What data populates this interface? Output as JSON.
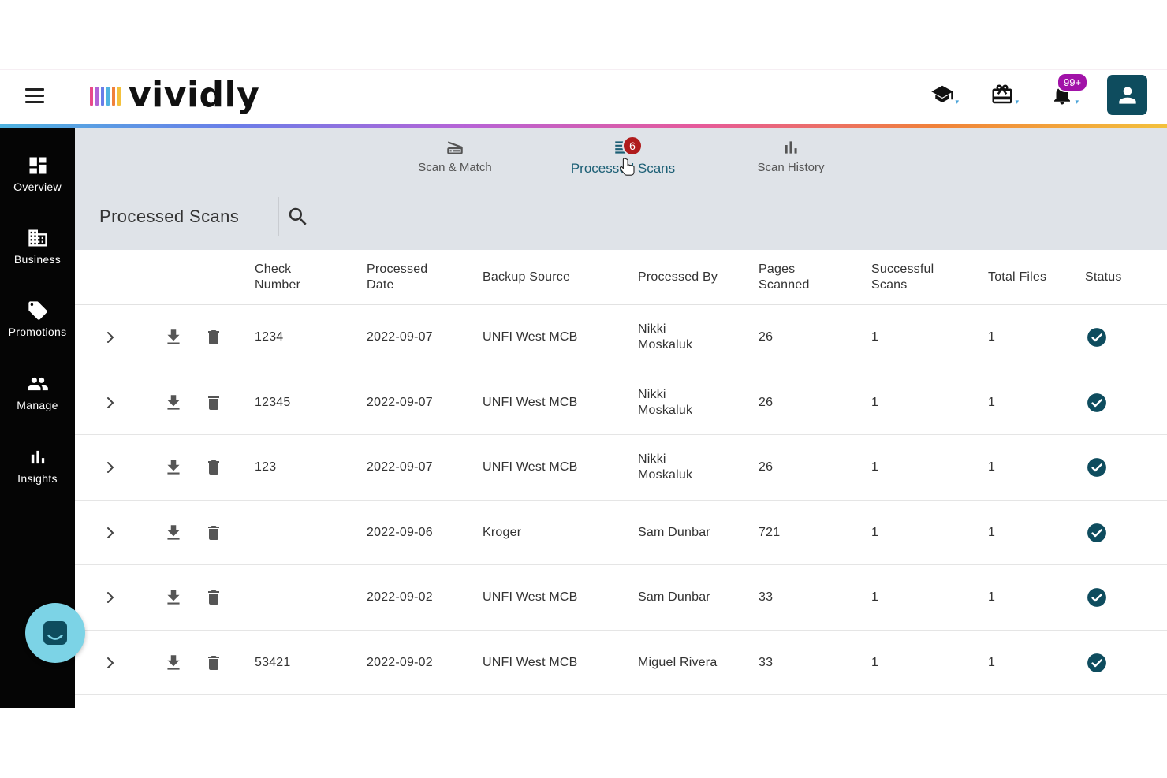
{
  "header": {
    "logo_text": "vividly",
    "notification_badge": "99+",
    "logo_colors": [
      "#e84a8a",
      "#b163d6",
      "#6a7de8",
      "#4fb3e0",
      "#f0813a",
      "#f3c13c"
    ]
  },
  "sidebar": {
    "items": [
      {
        "label": "Overview",
        "icon": "dashboard-icon"
      },
      {
        "label": "Business",
        "icon": "building-icon"
      },
      {
        "label": "Promotions",
        "icon": "tag-icon"
      },
      {
        "label": "Manage",
        "icon": "people-icon"
      },
      {
        "label": "Insights",
        "icon": "bar-chart-icon"
      }
    ]
  },
  "tabs": [
    {
      "label": "Scan & Match",
      "icon": "scanner-icon"
    },
    {
      "label": "Processed Scans",
      "icon": "list-icon",
      "badge": "6",
      "active": true
    },
    {
      "label": "Scan History",
      "icon": "bar-chart-icon"
    }
  ],
  "page": {
    "title": "Processed Scans"
  },
  "table": {
    "columns": [
      {
        "line1": "Check",
        "line2": "Number"
      },
      {
        "line1": "Processed",
        "line2": "Date"
      },
      {
        "line1": "Backup Source",
        "line2": ""
      },
      {
        "line1": "Processed By",
        "line2": ""
      },
      {
        "line1": "Pages",
        "line2": "Scanned"
      },
      {
        "line1": "Successful",
        "line2": "Scans"
      },
      {
        "line1": "Total Files",
        "line2": ""
      },
      {
        "line1": "Status",
        "line2": ""
      }
    ],
    "rows": [
      {
        "check": "1234",
        "date": "2022-09-07",
        "source": "UNFI West MCB",
        "by1": "Nikki",
        "by2": "Moskaluk",
        "pages": "26",
        "successful": "1",
        "total": "1"
      },
      {
        "check": "12345",
        "date": "2022-09-07",
        "source": "UNFI West MCB",
        "by1": "Nikki",
        "by2": "Moskaluk",
        "pages": "26",
        "successful": "1",
        "total": "1"
      },
      {
        "check": "123",
        "date": "2022-09-07",
        "source": "UNFI West MCB",
        "by1": "Nikki",
        "by2": "Moskaluk",
        "pages": "26",
        "successful": "1",
        "total": "1"
      },
      {
        "check": "",
        "date": "2022-09-06",
        "source": "Kroger",
        "by1": "Sam Dunbar",
        "by2": "",
        "pages": "721",
        "successful": "1",
        "total": "1"
      },
      {
        "check": "",
        "date": "2022-09-02",
        "source": "UNFI West MCB",
        "by1": "Sam Dunbar",
        "by2": "",
        "pages": "33",
        "successful": "1",
        "total": "1"
      },
      {
        "check": "53421",
        "date": "2022-09-02",
        "source": "UNFI West MCB",
        "by1": "Miguel Rivera",
        "by2": "",
        "pages": "33",
        "successful": "1",
        "total": "1"
      }
    ]
  },
  "colors": {
    "accent": "#1c5f75",
    "status_ok": "#0e4c5e",
    "badge_red": "#b01c1c",
    "badge_purple": "#a112a8",
    "chat": "#7cd3e6"
  }
}
